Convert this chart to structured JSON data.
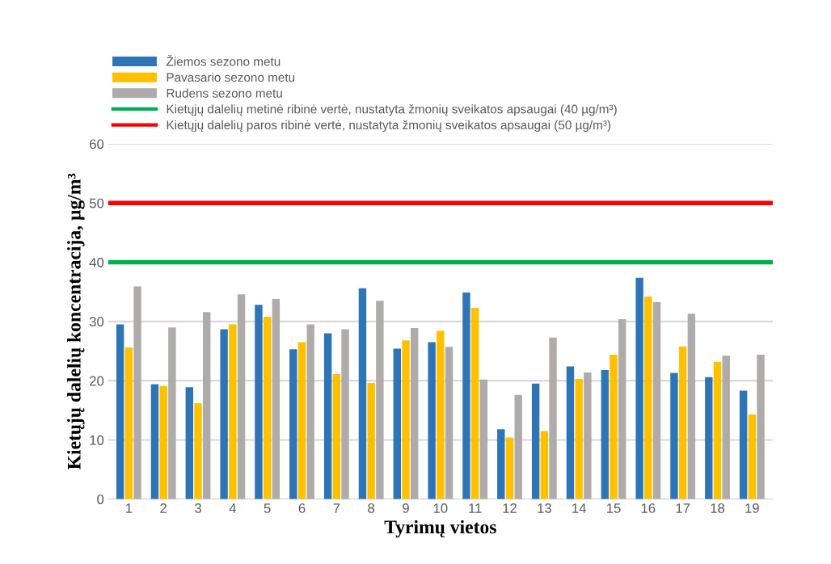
{
  "chart_data": {
    "type": "bar",
    "xlabel": "Tyrimų vietos",
    "ylabel": "Kietųjų dalelių koncentracija, µg/m³",
    "categories": [
      "1",
      "2",
      "3",
      "4",
      "5",
      "6",
      "7",
      "8",
      "9",
      "10",
      "11",
      "12",
      "13",
      "14",
      "15",
      "16",
      "17",
      "18",
      "19"
    ],
    "series": [
      {
        "name": "Žiemos sezono metu",
        "color": "#2e75b6",
        "values": [
          29.5,
          19.4,
          18.9,
          28.7,
          32.8,
          25.3,
          28.0,
          35.6,
          25.4,
          26.5,
          34.9,
          11.8,
          19.5,
          22.4,
          21.8,
          37.4,
          21.3,
          20.6,
          18.3
        ]
      },
      {
        "name": "Pavasario sezono metu",
        "color": "#ffc000",
        "values": [
          25.6,
          19.1,
          16.2,
          29.5,
          30.8,
          26.5,
          21.1,
          19.6,
          26.8,
          28.4,
          32.3,
          10.4,
          11.5,
          20.3,
          24.4,
          34.2,
          25.8,
          23.2,
          14.3
        ]
      },
      {
        "name": "Rudens sezono metu",
        "color": "#afabab",
        "values": [
          35.9,
          29.0,
          31.6,
          34.6,
          33.8,
          29.5,
          28.7,
          33.5,
          28.9,
          25.7,
          20.2,
          17.6,
          27.3,
          21.4,
          30.4,
          33.3,
          31.3,
          24.2,
          24.4
        ]
      }
    ],
    "ref_lines": [
      {
        "axis": "y",
        "value": 40,
        "label": "Kietųjų dalelių metinė ribinė vertė, nustatyta žmonių sveikatos apsaugai (40 µg/m³)",
        "color": "#00b050"
      },
      {
        "axis": "y",
        "value": 50,
        "label": "Kietųjų dalelių paros ribinė vertė, nustatyta žmonių sveikatos apsaugai (50 µg/m³)",
        "color": "#ff0000"
      }
    ],
    "ylim": [
      0,
      60
    ],
    "yticks": [
      0,
      10,
      20,
      30,
      40,
      50,
      60
    ],
    "grid": "y",
    "legend": "top left"
  }
}
